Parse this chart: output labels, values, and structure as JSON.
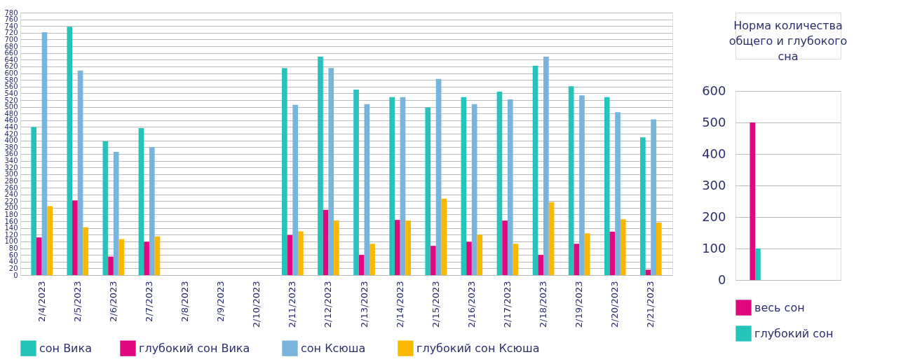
{
  "chart_data": [
    {
      "type": "bar",
      "categories": [
        "2/4/2023",
        "2/5/2023",
        "2/6/2023",
        "2/7/2023",
        "2/8/2023",
        "2/9/2023",
        "2/10/2023",
        "2/11/2023",
        "2/12/2023",
        "2/13/2023",
        "2/14/2023",
        "2/15/2023",
        "2/16/2023",
        "2/17/2023",
        "2/18/2023",
        "2/19/2023",
        "2/20/2023",
        "2/21/2023"
      ],
      "series": [
        {
          "name": "сон Вика",
          "color": "#26c3bb",
          "values": [
            440,
            738,
            398,
            437,
            null,
            null,
            null,
            615,
            649,
            551,
            529,
            498,
            529,
            545,
            622,
            561,
            529,
            409
          ]
        },
        {
          "name": "глубокий сон  Вика",
          "color": "#e0077f",
          "values": [
            112,
            222,
            55,
            99,
            null,
            null,
            null,
            119,
            194,
            60,
            164,
            87,
            99,
            162,
            60,
            93,
            129,
            16
          ]
        },
        {
          "name": "сон  Ксюша",
          "color": "#79b4dc",
          "values": [
            722,
            608,
            366,
            380,
            null,
            null,
            null,
            506,
            615,
            508,
            529,
            583,
            508,
            522,
            649,
            534,
            484,
            463
          ]
        },
        {
          "name": "глубокий сон  Ксюша",
          "color": "#fbb800",
          "values": [
            205,
            142,
            107,
            115,
            null,
            null,
            null,
            130,
            162,
            93,
            162,
            227,
            120,
            93,
            217,
            124,
            166,
            156
          ]
        }
      ],
      "ylim": [
        0,
        780
      ],
      "yticks": [
        0,
        20,
        40,
        60,
        80,
        100,
        120,
        140,
        160,
        180,
        200,
        220,
        240,
        260,
        280,
        300,
        320,
        340,
        360,
        380,
        400,
        420,
        440,
        460,
        480,
        500,
        520,
        540,
        560,
        580,
        600,
        620,
        640,
        660,
        680,
        700,
        720,
        740,
        760,
        780
      ],
      "grid": "y",
      "legend": "bottom"
    },
    {
      "type": "bar",
      "title": "Норма количества общего и глубокого сна",
      "categories": [
        null
      ],
      "series": [
        {
          "name": "весь сон",
          "color": "#e0077f",
          "values": [
            500
          ]
        },
        {
          "name": "глубокий сон",
          "color": "#26c3bb",
          "values": [
            100
          ]
        }
      ],
      "ylim": [
        0,
        600
      ],
      "yticks": [
        0,
        100,
        200,
        300,
        400,
        500,
        600
      ],
      "grid": "y",
      "legend": "bottom",
      "tick_labels": "y"
    }
  ]
}
